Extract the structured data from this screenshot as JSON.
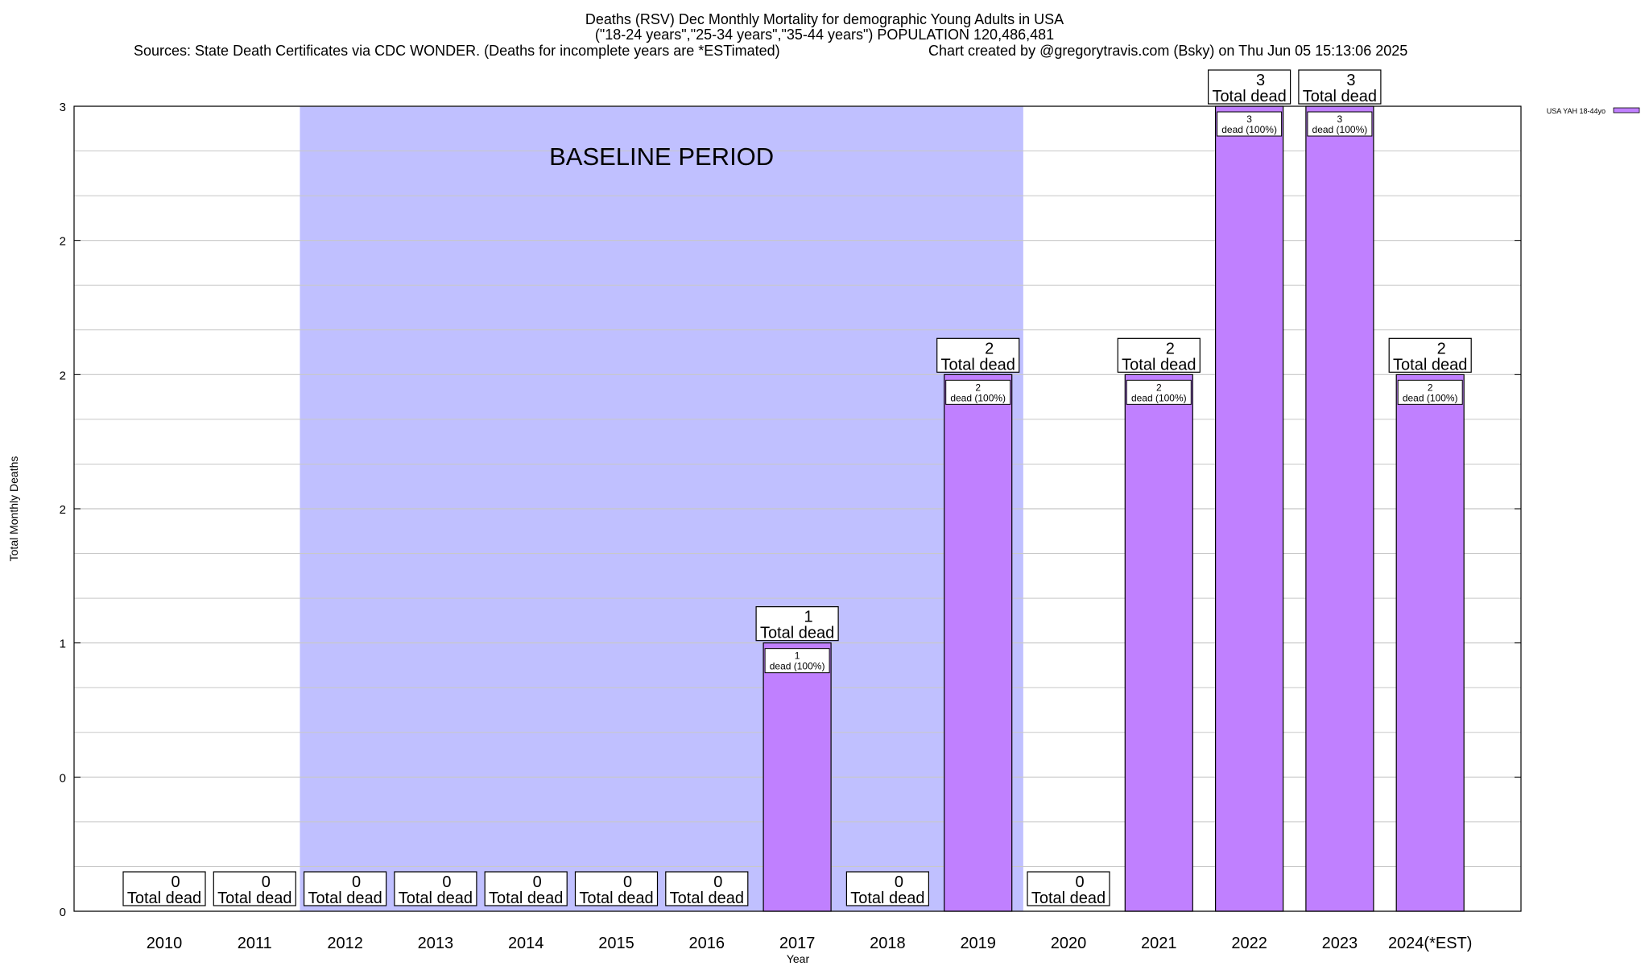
{
  "title": {
    "line1": "Deaths (RSV) Dec Monthly Mortality for demographic Young Adults in USA",
    "line2": "(\"18-24 years\",\"25-34 years\",\"35-44 years\") POPULATION 120,486,481",
    "sources": "Sources: State Death Certificates via CDC WONDER. (Deaths for incomplete years are *ESTimated)",
    "credit": "Chart created by @gregorytravis.com (Bsky) on Thu Jun 05 15:13:06 2025"
  },
  "colors": {
    "bar_fill": "#c080ff",
    "baseline_fill": "#c0c0ff",
    "grid": "#c8c8c8",
    "axis": "#000000"
  },
  "chart_data": {
    "type": "bar",
    "title": "Deaths (RSV) Dec Monthly Mortality for demographic Young Adults in USA",
    "xlabel": "Year",
    "ylabel": "Total Monthly Deaths",
    "ylim": [
      0,
      3
    ],
    "ytick_values": [
      0,
      0.5,
      1,
      1.5,
      2,
      2.5,
      3
    ],
    "ytick_labels": [
      "0",
      "0",
      "1",
      "2",
      "2",
      "2",
      "3"
    ],
    "grid": true,
    "legend_position": "top-right",
    "baseline_label": "BASELINE PERIOD",
    "baseline_range": [
      "2012",
      "2019"
    ],
    "total_label_suffix": "Total dead",
    "categories": [
      "2010",
      "2011",
      "2012",
      "2013",
      "2014",
      "2015",
      "2016",
      "2017",
      "2018",
      "2019",
      "2020",
      "2021",
      "2022",
      "2023",
      "2024(*EST)"
    ],
    "series": [
      {
        "name": "USA YAH 18-44yo",
        "values": [
          0,
          0,
          0,
          0,
          0,
          0,
          0,
          1,
          0,
          2,
          0,
          2,
          3,
          3,
          2
        ],
        "inner_labels": [
          "",
          "",
          "",
          "",
          "",
          "",
          "",
          "1\ndead (100%)",
          "",
          "2\ndead (100%)",
          "",
          "2\ndead (100%)",
          "3\ndead (100%)",
          "3\ndead (100%)",
          "2\ndead (100%)"
        ]
      }
    ]
  }
}
